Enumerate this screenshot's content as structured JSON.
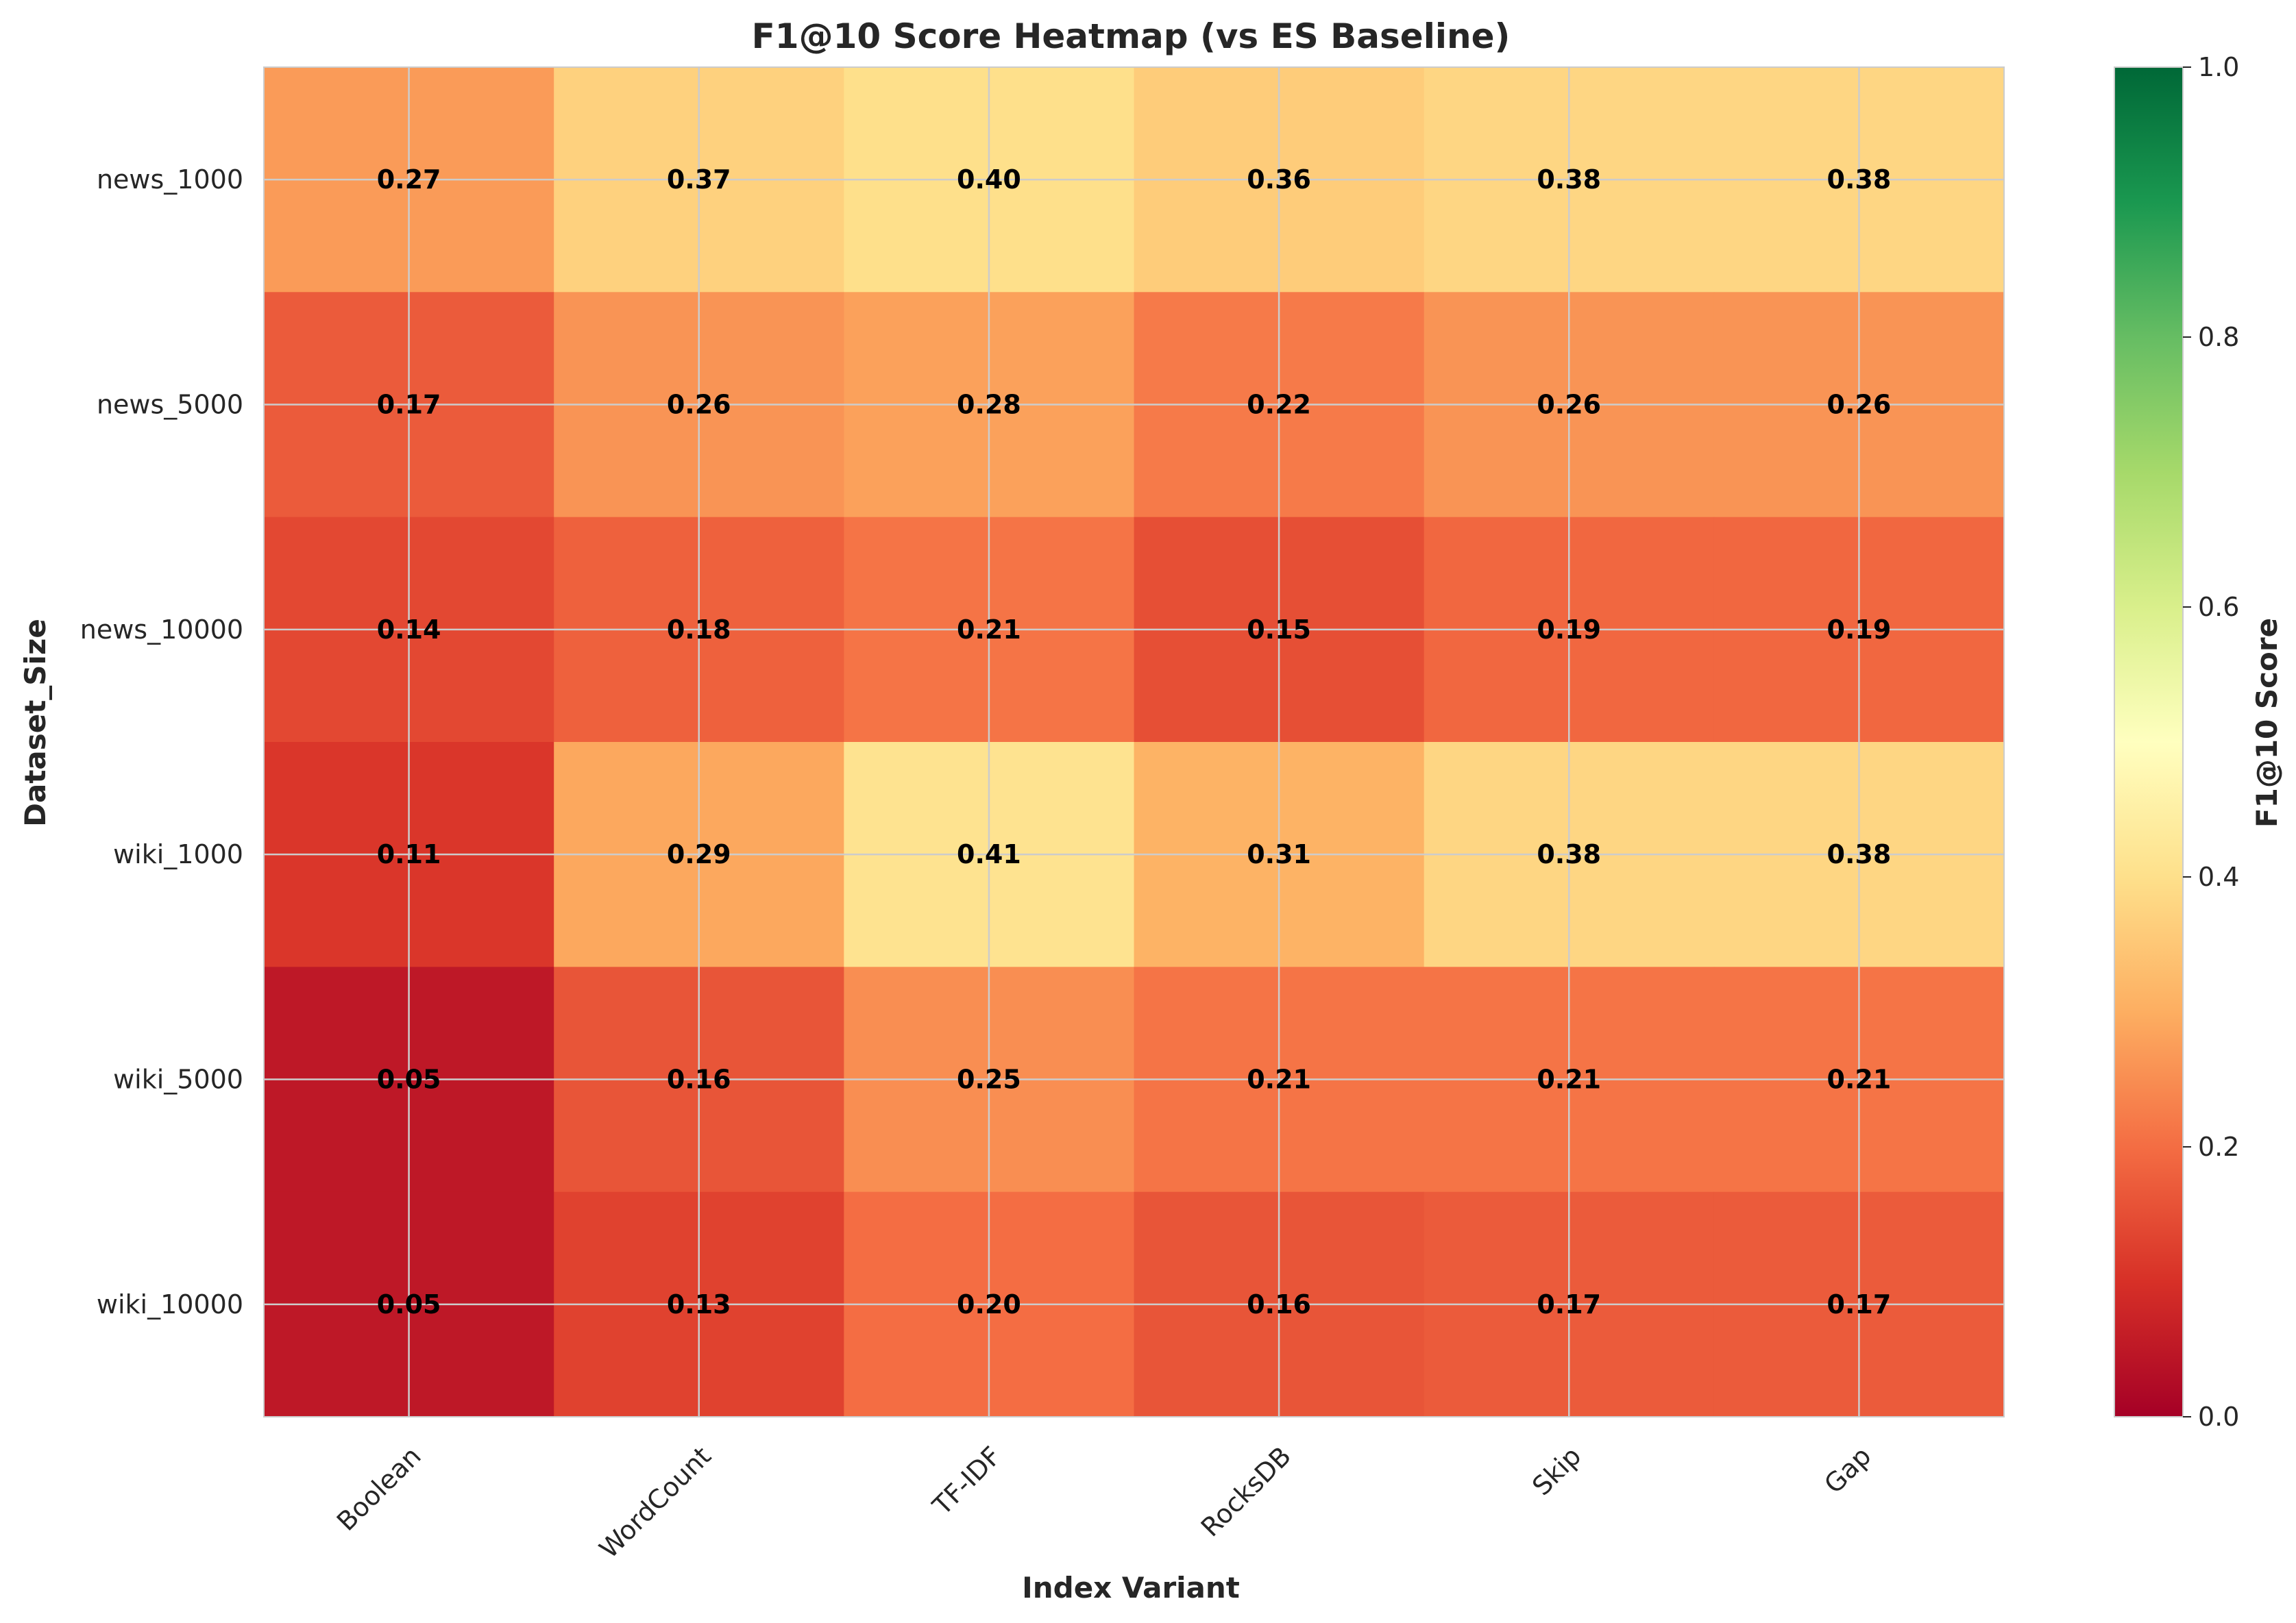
{
  "chart_data": {
    "type": "heatmap",
    "title": "F1@10 Score Heatmap (vs ES Baseline)",
    "xlabel": "Index Variant",
    "ylabel": "Dataset_Size",
    "x_categories": [
      "Boolean",
      "WordCount",
      "TF-IDF",
      "RocksDB",
      "Skip",
      "Gap"
    ],
    "y_categories": [
      "news_1000",
      "news_5000",
      "news_10000",
      "wiki_1000",
      "wiki_5000",
      "wiki_10000"
    ],
    "values": [
      [
        0.27,
        0.37,
        0.4,
        0.36,
        0.38,
        0.38
      ],
      [
        0.17,
        0.26,
        0.28,
        0.22,
        0.26,
        0.26
      ],
      [
        0.14,
        0.18,
        0.21,
        0.15,
        0.19,
        0.19
      ],
      [
        0.11,
        0.29,
        0.41,
        0.31,
        0.38,
        0.38
      ],
      [
        0.05,
        0.16,
        0.25,
        0.21,
        0.21,
        0.21
      ],
      [
        0.05,
        0.13,
        0.2,
        0.16,
        0.17,
        0.17
      ]
    ],
    "value_labels": [
      [
        "0.27",
        "0.37",
        "0.40",
        "0.36",
        "0.38",
        "0.38"
      ],
      [
        "0.17",
        "0.26",
        "0.28",
        "0.22",
        "0.26",
        "0.26"
      ],
      [
        "0.14",
        "0.18",
        "0.21",
        "0.15",
        "0.19",
        "0.19"
      ],
      [
        "0.11",
        "0.29",
        "0.41",
        "0.31",
        "0.38",
        "0.38"
      ],
      [
        "0.05",
        "0.16",
        "0.25",
        "0.21",
        "0.21",
        "0.21"
      ],
      [
        "0.05",
        "0.13",
        "0.20",
        "0.16",
        "0.17",
        "0.17"
      ]
    ],
    "colormap": "RdYlGn",
    "colorbar": {
      "label": "F1@10 Score",
      "range": [
        0.0,
        1.0
      ],
      "ticks": [
        0.0,
        0.2,
        0.4,
        0.6,
        0.8,
        1.0
      ],
      "tick_labels": [
        "0.0",
        "0.2",
        "0.4",
        "0.6",
        "0.8",
        "1.0"
      ]
    },
    "grid": true,
    "colors": {
      "gridline": "#cccccc",
      "annotation_text": "#000000",
      "text": "#262626"
    }
  }
}
